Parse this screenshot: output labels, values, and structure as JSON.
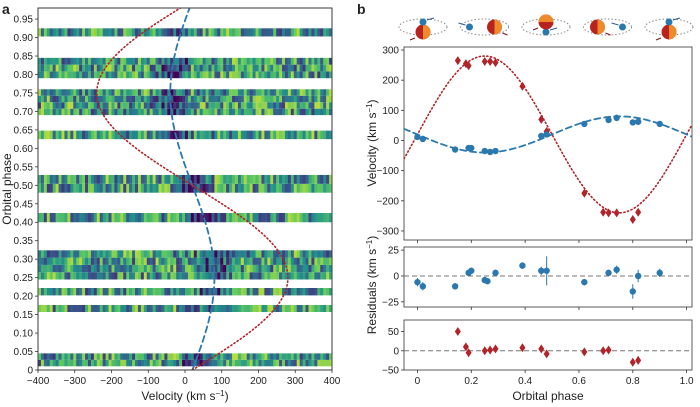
{
  "panel_labels": {
    "a": "a",
    "b": "b"
  },
  "unit_superscript": "−1",
  "colors": {
    "primary": "#2a78ae",
    "secondary": "#b0242a",
    "zero_line": "#777777",
    "trail_low": "#3b1f6e",
    "trail_high": "#d4e33a"
  },
  "chart_data": [
    {
      "id": "a",
      "type": "heatmap",
      "xlabel": "Velocity (km s",
      "ylabel": "Orbital phase",
      "xlim": [
        -400,
        400
      ],
      "ylim": [
        0,
        0.98
      ],
      "xticks": [
        -400,
        -300,
        -200,
        -100,
        0,
        100,
        200,
        300,
        400
      ],
      "xtick_labels": [
        "−400",
        "−300",
        "−200",
        "−100",
        "0",
        "100",
        "200",
        "300",
        "400"
      ],
      "yticks": [
        0,
        0.05,
        0.1,
        0.15,
        0.2,
        0.25,
        0.3,
        0.35,
        0.4,
        0.45,
        0.5,
        0.55,
        0.6,
        0.65,
        0.7,
        0.75,
        0.8,
        0.85,
        0.9,
        0.95
      ],
      "ytick_labels": [
        "0",
        "0.05",
        "0.10",
        "0.15",
        "0.20",
        "0.25",
        "0.30",
        "0.35",
        "0.40",
        "0.45",
        "0.50",
        "0.55",
        "0.60",
        "0.65",
        "0.70",
        "0.75",
        "0.80",
        "0.85",
        "0.90",
        "0.95"
      ],
      "rows": [
        {
          "phase": [
            0.01,
            0.045
          ]
        },
        {
          "phase": [
            0.157,
            0.176
          ]
        },
        {
          "phase": [
            0.202,
            0.222
          ]
        },
        {
          "phase": [
            0.245,
            0.324
          ]
        },
        {
          "phase": [
            0.4,
            0.425
          ]
        },
        {
          "phase": [
            0.48,
            0.528
          ]
        },
        {
          "phase": [
            0.625,
            0.648
          ]
        },
        {
          "phase": [
            0.69,
            0.76
          ]
        },
        {
          "phase": [
            0.79,
            0.845
          ]
        },
        {
          "phase": [
            0.903,
            0.925
          ]
        }
      ],
      "tracks": [
        {
          "style": "dashed",
          "color": "#2a78ae",
          "K": 60,
          "offset": 20
        },
        {
          "style": "dotted",
          "color": "#b0242a",
          "K": 260,
          "offset": 20
        }
      ]
    },
    {
      "id": "b-velocity",
      "type": "scatter",
      "ylabel": "Velocity (km s",
      "xlim": [
        -0.05,
        1.02
      ],
      "ylim": [
        -330,
        310
      ],
      "yticks": [
        300,
        200,
        100,
        0,
        -100,
        -200,
        -300
      ],
      "ytick_labels": [
        "300",
        "200",
        "100",
        "0",
        "−100",
        "−200",
        "−300"
      ],
      "series": [
        {
          "color": "#b0242a",
          "marker": "diamond",
          "model": {
            "K": 260,
            "offset": 20
          },
          "x": [
            0.15,
            0.18,
            0.19,
            0.25,
            0.27,
            0.29,
            0.39,
            0.46,
            0.48,
            0.62,
            0.69,
            0.71,
            0.74,
            0.8,
            0.82
          ],
          "y": [
            265,
            255,
            248,
            262,
            262,
            258,
            180,
            70,
            30,
            -175,
            -238,
            -240,
            -240,
            -262,
            -238
          ]
        },
        {
          "color": "#2a78ae",
          "marker": "circle",
          "model": {
            "K": -60,
            "offset": 20
          },
          "x": [
            0.0,
            0.02,
            0.14,
            0.19,
            0.2,
            0.25,
            0.27,
            0.29,
            0.46,
            0.48,
            0.62,
            0.71,
            0.74,
            0.8,
            0.82,
            0.9
          ],
          "y": [
            12,
            5,
            -30,
            -25,
            -25,
            -35,
            -38,
            -35,
            15,
            20,
            55,
            68,
            75,
            60,
            62,
            55
          ]
        }
      ]
    },
    {
      "id": "b-residuals-1",
      "type": "scatter",
      "ylabel": "Residuals (km s",
      "xlim": [
        -0.05,
        1.02
      ],
      "ylim": [
        -30,
        28
      ],
      "yticks": [
        25,
        0,
        -25
      ],
      "ytick_labels": [
        "25",
        "0",
        "−25"
      ],
      "series": [
        {
          "color": "#2a78ae",
          "marker": "circle",
          "x": [
            0.0,
            0.02,
            0.14,
            0.19,
            0.2,
            0.25,
            0.26,
            0.29,
            0.39,
            0.46,
            0.48,
            0.62,
            0.71,
            0.74,
            0.8,
            0.82,
            0.9
          ],
          "y": [
            -6,
            -10,
            -10,
            3,
            5,
            -4,
            -5,
            3,
            10,
            5,
            5,
            -6,
            3,
            6,
            -15,
            0,
            3
          ],
          "err": [
            4,
            4,
            3,
            3,
            3,
            3,
            3,
            3,
            3,
            4,
            14,
            3,
            3,
            4,
            7,
            6,
            4
          ]
        }
      ]
    },
    {
      "id": "b-residuals-2",
      "type": "scatter",
      "xlabel": "Orbital phase",
      "xlim": [
        -0.05,
        1.02
      ],
      "ylim": [
        -50,
        80
      ],
      "xticks": [
        0,
        0.2,
        0.4,
        0.6,
        0.8,
        1.0
      ],
      "xtick_labels": [
        "0",
        "0.2",
        "0.4",
        "0.6",
        "0.8",
        "1.0"
      ],
      "yticks": [
        50,
        0,
        -50
      ],
      "ytick_labels": [
        "50",
        "0",
        "−50"
      ],
      "series": [
        {
          "color": "#b0242a",
          "marker": "diamond",
          "x": [
            0.15,
            0.18,
            0.19,
            0.25,
            0.27,
            0.29,
            0.39,
            0.46,
            0.48,
            0.62,
            0.69,
            0.71,
            0.8,
            0.82
          ],
          "y": [
            50,
            10,
            -5,
            0,
            2,
            5,
            8,
            5,
            -8,
            -3,
            0,
            2,
            -30,
            -25
          ],
          "err": [
            8,
            6,
            6,
            5,
            5,
            5,
            6,
            6,
            6,
            5,
            5,
            5,
            10,
            10
          ]
        }
      ]
    }
  ]
}
